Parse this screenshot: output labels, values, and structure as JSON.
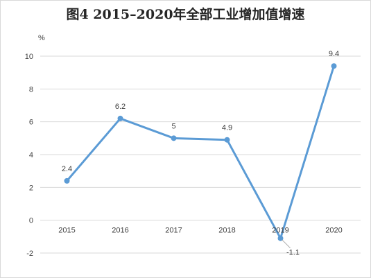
{
  "chart_data": {
    "type": "line",
    "title": "图4  2015–2020年全部工业增加值增速",
    "unit_label": "%",
    "categories": [
      "2015",
      "2016",
      "2017",
      "2018",
      "2019",
      "2020"
    ],
    "series": [
      {
        "values": [
          2.4,
          6.2,
          5,
          4.9,
          -1.1,
          9.4
        ],
        "color": "#5b9bd5"
      }
    ],
    "data_labels": [
      "2.4",
      "6.2",
      "5",
      "4.9",
      "-1.1",
      "9.4"
    ],
    "ylim": [
      -2,
      10
    ],
    "yticks": [
      -2,
      0,
      2,
      4,
      6,
      8,
      10
    ],
    "grid": true,
    "xlabel": "",
    "ylabel": ""
  }
}
